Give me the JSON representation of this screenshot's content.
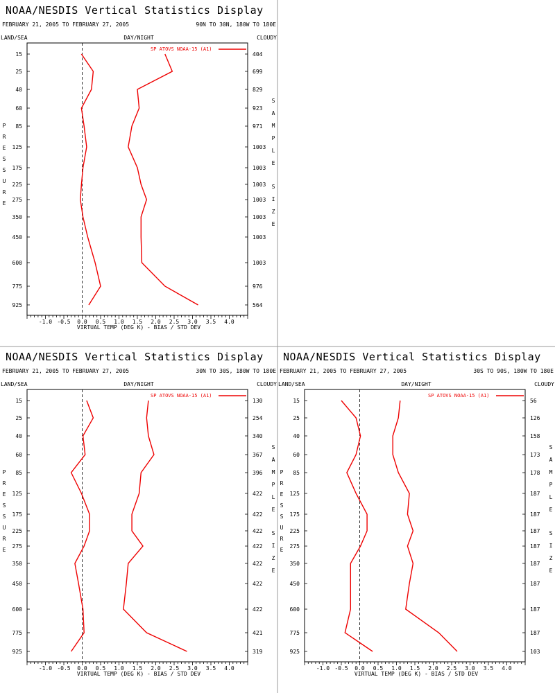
{
  "panels": [
    {
      "title": "NOAA/NESDIS Vertical Statistics Display",
      "date_range": "FEBRUARY 21, 2005 TO FEBRUARY 27, 2005",
      "region": "90N TO 30N, 180W TO 180E",
      "land_sea_label": "LAND/SEA",
      "day_night_label": "DAY/NIGHT",
      "cloudy_label": "CLOUDY",
      "pressure_label": "PRESSURE",
      "sample_label": "SAMPLE",
      "size_label": "SIZE",
      "xlabel": "VIRTUAL TEMP (DEG K) - BIAS / STD DEV",
      "legend": "SP ATOVS NOAA-15 (A1)"
    },
    {
      "title": "NOAA/NESDIS Vertical Statistics Display",
      "date_range": "FEBRUARY 21, 2005 TO FEBRUARY 27, 2005",
      "region": "30N TO 30S, 180W TO 180E",
      "land_sea_label": "LAND/SEA",
      "day_night_label": "DAY/NIGHT",
      "cloudy_label": "CLOUDY",
      "pressure_label": "PRESSURE",
      "sample_label": "SAMPLE",
      "size_label": "SIZE",
      "xlabel": "VIRTUAL TEMP (DEG K) - BIAS / STD DEV",
      "legend": "SP ATOVS NOAA-15 (A1)"
    },
    {
      "title": "NOAA/NESDIS Vertical Statistics Display",
      "date_range": "FEBRUARY 21, 2005 TO FEBRUARY 27, 2005",
      "region": "30S TO 90S, 180W TO 180E",
      "land_sea_label": "LAND/SEA",
      "day_night_label": "DAY/NIGHT",
      "cloudy_label": "CLOUDY",
      "pressure_label": "PRESSURE",
      "sample_label": "SAMPLE",
      "size_label": "SIZE",
      "xlabel": "VIRTUAL TEMP (DEG K) - BIAS / STD DEV",
      "legend": "SP ATOVS NOAA-15 (A1)"
    }
  ],
  "colors": {
    "series": "#ee0000",
    "axis": "#000000",
    "divider": "#999999"
  },
  "chart_data": [
    {
      "type": "line",
      "xlabel": "VIRTUAL TEMP (DEG K) - BIAS / STD DEV",
      "ylabel": "PRESSURE",
      "xlim": [
        -1.5,
        4.5
      ],
      "x_ticks": [
        "-1.0",
        "-0.5",
        "0.0",
        "0.5",
        "1.0",
        "1.5",
        "2.0",
        "2.5",
        "3.0",
        "3.5",
        "4.0"
      ],
      "x_tick_values": [
        -1.0,
        -0.5,
        0,
        0.5,
        1.0,
        1.5,
        2.0,
        2.5,
        3.0,
        3.5,
        4.0
      ],
      "pressure_levels": [
        15,
        25,
        40,
        60,
        85,
        125,
        175,
        225,
        275,
        350,
        450,
        600,
        775,
        925
      ],
      "pressure_labels": [
        "15",
        "25",
        "40",
        "60",
        "85",
        "125",
        "175",
        "225",
        "275",
        "350",
        "450",
        "600",
        "775",
        "925"
      ],
      "sample_size": [
        "404",
        "699",
        "829",
        "923",
        "971",
        "1003",
        "1003",
        "1003",
        "1003",
        "1003",
        "1003",
        "1003",
        "976",
        "564"
      ],
      "series": [
        {
          "name": "BIAS",
          "values": [
            -0.02,
            0.3,
            0.25,
            -0.02,
            0.05,
            0.12,
            0.02,
            -0.02,
            -0.05,
            0.02,
            0.15,
            0.35,
            0.5,
            0.18
          ]
        },
        {
          "name": "STD DEV",
          "values": [
            2.25,
            2.45,
            1.5,
            1.55,
            1.35,
            1.25,
            1.5,
            1.6,
            1.75,
            1.6,
            1.6,
            1.62,
            2.25,
            3.15
          ]
        }
      ],
      "zero_line": "dashed"
    },
    {
      "type": "line",
      "xlabel": "VIRTUAL TEMP (DEG K) - BIAS / STD DEV",
      "ylabel": "PRESSURE",
      "xlim": [
        -1.5,
        4.5
      ],
      "x_ticks": [
        "-1.0",
        "-0.5",
        "0.0",
        "0.5",
        "1.0",
        "1.5",
        "2.0",
        "2.5",
        "3.0",
        "3.5",
        "4.0"
      ],
      "x_tick_values": [
        -1.0,
        -0.5,
        0,
        0.5,
        1.0,
        1.5,
        2.0,
        2.5,
        3.0,
        3.5,
        4.0
      ],
      "pressure_levels": [
        15,
        25,
        40,
        60,
        85,
        125,
        175,
        225,
        275,
        350,
        450,
        600,
        775,
        925
      ],
      "pressure_labels": [
        "15",
        "25",
        "40",
        "60",
        "85",
        "125",
        "175",
        "225",
        "275",
        "350",
        "450",
        "600",
        "775",
        "925"
      ],
      "sample_size": [
        "130",
        "254",
        "340",
        "367",
        "396",
        "422",
        "422",
        "422",
        "422",
        "422",
        "422",
        "422",
        "421",
        "319"
      ],
      "series": [
        {
          "name": "BIAS",
          "values": [
            0.12,
            0.3,
            0.02,
            0.08,
            -0.3,
            -0.02,
            0.2,
            0.2,
            0.05,
            -0.2,
            -0.1,
            0.02,
            0.05,
            -0.3
          ]
        },
        {
          "name": "STD DEV",
          "values": [
            1.8,
            1.75,
            1.8,
            1.95,
            1.6,
            1.55,
            1.35,
            1.35,
            1.65,
            1.25,
            1.2,
            1.12,
            1.75,
            2.85
          ]
        }
      ],
      "zero_line": "dashed"
    },
    {
      "type": "line",
      "xlabel": "VIRTUAL TEMP (DEG K) - BIAS / STD DEV",
      "ylabel": "PRESSURE",
      "xlim": [
        -1.5,
        4.5
      ],
      "x_ticks": [
        "-1.0",
        "-0.5",
        "0.0",
        "0.5",
        "1.0",
        "1.5",
        "2.0",
        "2.5",
        "3.0",
        "3.5",
        "4.0"
      ],
      "x_tick_values": [
        -1.0,
        -0.5,
        0,
        0.5,
        1.0,
        1.5,
        2.0,
        2.5,
        3.0,
        3.5,
        4.0
      ],
      "pressure_levels": [
        15,
        25,
        40,
        60,
        85,
        125,
        175,
        225,
        275,
        350,
        450,
        600,
        775,
        925
      ],
      "pressure_labels": [
        "15",
        "25",
        "40",
        "60",
        "85",
        "125",
        "175",
        "225",
        "275",
        "350",
        "450",
        "600",
        "775",
        "925"
      ],
      "sample_size": [
        "56",
        "126",
        "158",
        "173",
        "178",
        "187",
        "187",
        "187",
        "187",
        "187",
        "187",
        "187",
        "187",
        "103"
      ],
      "series": [
        {
          "name": "BIAS",
          "values": [
            -0.5,
            -0.1,
            0.02,
            -0.1,
            -0.35,
            -0.1,
            0.2,
            0.2,
            0.02,
            -0.25,
            -0.25,
            -0.25,
            -0.4,
            0.35
          ]
        },
        {
          "name": "STD DEV",
          "values": [
            1.1,
            1.05,
            0.9,
            0.9,
            1.05,
            1.35,
            1.3,
            1.45,
            1.3,
            1.45,
            1.35,
            1.25,
            2.15,
            2.65
          ]
        }
      ],
      "zero_line": "dashed"
    }
  ]
}
